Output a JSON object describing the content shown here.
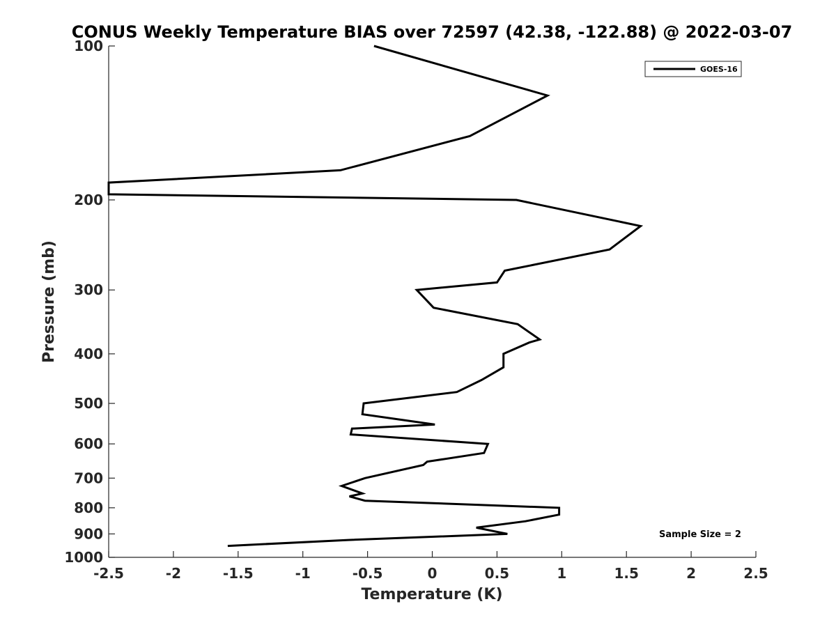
{
  "chart_data": {
    "type": "line",
    "title": "CONUS Weekly Temperature BIAS over 72597 (42.38, -122.88) @ 2022-03-07",
    "xlabel": "Temperature (K)",
    "ylabel": "Pressure (mb)",
    "xlim": [
      -2.5,
      2.5
    ],
    "ylim": [
      100,
      1000
    ],
    "y_scale": "log",
    "y_reversed": true,
    "x_ticks": [
      "-2.5",
      "-2",
      "-1.5",
      "-1",
      "-0.5",
      "0",
      "0.5",
      "1",
      "1.5",
      "2",
      "2.5"
    ],
    "y_ticks": [
      "100",
      "200",
      "300",
      "400",
      "500",
      "600",
      "700",
      "800",
      "900",
      "1000"
    ],
    "grid": false,
    "legend": {
      "position": "top-right",
      "entries": [
        "GOES-16"
      ]
    },
    "annotation": "Sample Size = 2",
    "series": [
      {
        "name": "GOES-16",
        "color": "#000000",
        "points": [
          [
            -0.45,
            100
          ],
          [
            0.89,
            125
          ],
          [
            0.29,
            150
          ],
          [
            -0.71,
            175
          ],
          [
            -2.5,
            185
          ],
          [
            -2.5,
            195
          ],
          [
            0.65,
            200
          ],
          [
            1.61,
            225
          ],
          [
            1.37,
            250
          ],
          [
            0.56,
            275
          ],
          [
            0.5,
            290
          ],
          [
            -0.12,
            300
          ],
          [
            0.01,
            325
          ],
          [
            0.66,
            350
          ],
          [
            0.83,
            375
          ],
          [
            0.75,
            380
          ],
          [
            0.55,
            400
          ],
          [
            0.55,
            425
          ],
          [
            0.38,
            450
          ],
          [
            0.19,
            475
          ],
          [
            -0.53,
            500
          ],
          [
            -0.54,
            525
          ],
          [
            0.02,
            550
          ],
          [
            -0.62,
            560
          ],
          [
            -0.63,
            575
          ],
          [
            0.43,
            600
          ],
          [
            0.4,
            625
          ],
          [
            -0.04,
            650
          ],
          [
            -0.07,
            660
          ],
          [
            -0.52,
            700
          ],
          [
            -0.7,
            725
          ],
          [
            -0.54,
            750
          ],
          [
            -0.64,
            760
          ],
          [
            -0.52,
            775
          ],
          [
            0.98,
            800
          ],
          [
            0.98,
            825
          ],
          [
            0.72,
            850
          ],
          [
            0.34,
            875
          ],
          [
            0.58,
            900
          ],
          [
            -0.65,
            925
          ],
          [
            -1.58,
            950
          ]
        ]
      }
    ]
  }
}
